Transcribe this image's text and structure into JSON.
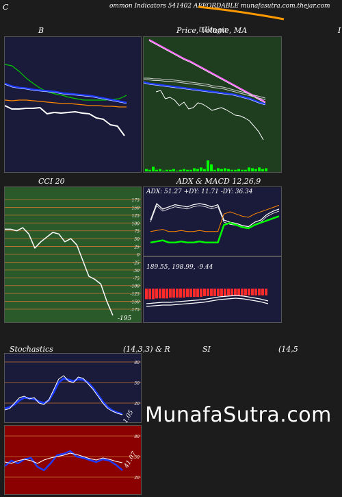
{
  "header": {
    "title": "ommon  Indicators 541402  AFFORDABLE munafasutra.com.thejar.com",
    "left_letter": "C"
  },
  "panel_titles": {
    "b": "B",
    "price": "Price,  Volume,  MA",
    "price_overlap": "Ullingir",
    "cci": "CCI 20",
    "adx_macd": "ADX   & MACD 12,26,9",
    "stoch_left": "Stochastics",
    "stoch_params": "(14,3,3) & R",
    "rsi": "SI",
    "rsi_params": "(14,5",
    "right_edge": "I"
  },
  "adx_text": "ADX: 51.27  +DY: 11.71  -DY: 36.34",
  "macd_text": "189.55,  198.99,  -9.44",
  "cci_last": "-195",
  "stoch_last": "1.05",
  "rsi_last": "41.07",
  "watermark": "MunafaSutra.com",
  "colors": {
    "panel_navy": "#1a1a3a",
    "panel_green": "#1f3d1f",
    "cci_green": "#2a5a2a",
    "rsi_red": "#8b0000",
    "price_line": "#ffffff",
    "ma_blue": "#0000ff",
    "ma_green": "#00cc00",
    "ma_orange": "#ff8800",
    "volume_green": "#00ff00"
  },
  "chart_data": [
    {
      "type": "line",
      "name": "Bollinger Bands",
      "series": [
        {
          "values": [
            100,
            95,
            95,
            96,
            96,
            97,
            88,
            90,
            89,
            90,
            91,
            89,
            88,
            82,
            80,
            72,
            70,
            56
          ]
        },
        {
          "values": [
            132,
            128,
            126,
            125,
            123,
            122,
            121,
            120,
            118,
            117,
            116,
            115,
            114,
            112,
            110,
            108,
            106,
            104
          ]
        },
        {
          "values": [
            160,
            158,
            150,
            140,
            132,
            125,
            120,
            117,
            115,
            112,
            110,
            108,
            108,
            108,
            108,
            109,
            110,
            115
          ]
        },
        {
          "values": [
            108,
            107,
            108,
            108,
            107,
            106,
            105,
            104,
            103,
            103,
            102,
            101,
            100,
            100,
            99,
            99,
            98,
            98
          ]
        }
      ]
    },
    {
      "type": "line",
      "name": "Price Volume MA",
      "series": [
        {
          "values": [
            120,
            122,
            110,
            112,
            108,
            100,
            105,
            95,
            97,
            104,
            102,
            98,
            93,
            95,
            97,
            94,
            90,
            86,
            85,
            82,
            78,
            70,
            62,
            50
          ]
        },
        {
          "values": [
            134,
            132,
            131,
            130,
            129,
            128,
            127,
            126,
            125,
            124,
            123,
            122,
            121,
            120,
            119,
            118,
            117,
            116,
            114,
            112,
            110,
            107,
            104,
            102
          ]
        },
        {
          "values": [
            140,
            140,
            139,
            139,
            138,
            138,
            137,
            136,
            135,
            134,
            133,
            132,
            131,
            129,
            128,
            127,
            125,
            123,
            121,
            119,
            117,
            115,
            113,
            111
          ]
        },
        {
          "values": [
            196,
            192,
            188,
            184,
            180,
            176,
            172,
            168,
            165,
            161,
            157,
            153,
            149,
            145,
            141,
            137,
            133,
            129,
            125,
            121,
            117,
            113,
            109,
            105
          ]
        }
      ],
      "volume": [
        3,
        2,
        6,
        2,
        3,
        1,
        2,
        2,
        3,
        1,
        2,
        3,
        2,
        2,
        4,
        3,
        5,
        3,
        14,
        9,
        2,
        4,
        3,
        4,
        3,
        2,
        2,
        3,
        2,
        2,
        5,
        4,
        3,
        5,
        3,
        4
      ]
    },
    {
      "type": "line",
      "name": "CCI 20",
      "yticks": [
        175,
        150,
        125,
        100,
        75,
        50,
        25,
        0,
        -25,
        -50,
        -75,
        -100,
        -125,
        -150,
        -175
      ],
      "series": [
        {
          "values": [
            80,
            80,
            75,
            85,
            65,
            20,
            40,
            55,
            70,
            65,
            40,
            50,
            30,
            -20,
            -70,
            -80,
            -95,
            -150,
            -195
          ]
        }
      ]
    },
    {
      "type": "line",
      "name": "ADX",
      "series": [
        {
          "values": [
            30,
            45,
            40,
            42,
            44,
            43,
            42,
            44,
            45,
            44,
            42,
            44,
            30,
            28,
            27,
            25,
            24,
            28,
            30,
            35,
            38,
            40
          ]
        },
        {
          "values": [
            12,
            13,
            14,
            12,
            12,
            13,
            12,
            12,
            13,
            12,
            12,
            12,
            28,
            30,
            28,
            26,
            25,
            28,
            30,
            32,
            34,
            36
          ]
        }
      ]
    },
    {
      "type": "bar",
      "name": "MACD histogram",
      "values": [
        -14,
        -14,
        -14,
        -13,
        -13,
        -13,
        -13,
        -12,
        -12,
        -12,
        -12,
        -12,
        -11,
        -11,
        -11,
        -11,
        -11,
        -10,
        -10,
        -10,
        -10,
        -10,
        -10,
        -10,
        -9,
        -9,
        -9,
        -9,
        -9,
        -9,
        -9,
        -9,
        -9,
        -9,
        -9,
        -9
      ]
    },
    {
      "type": "line",
      "name": "Stochastics",
      "yticks": [
        80,
        50,
        20
      ],
      "series": [
        {
          "values": [
            10,
            12,
            20,
            28,
            30,
            26,
            28,
            20,
            18,
            25,
            40,
            55,
            60,
            52,
            50,
            58,
            56,
            48,
            40,
            30,
            20,
            12,
            8,
            5,
            3
          ]
        },
        {
          "values": [
            12,
            14,
            18,
            24,
            28,
            27,
            26,
            22,
            20,
            24,
            36,
            50,
            56,
            54,
            52,
            55,
            54,
            50,
            42,
            32,
            22,
            14,
            9,
            6,
            4
          ]
        }
      ]
    },
    {
      "type": "line",
      "name": "RSI",
      "yticks": [
        80,
        50,
        20
      ],
      "series": [
        {
          "values": [
            42,
            40,
            44,
            46,
            44,
            40,
            45,
            48,
            50,
            52,
            55,
            53,
            50,
            47,
            45,
            48,
            46,
            43,
            41
          ]
        },
        {
          "values": [
            36,
            44,
            40,
            46,
            48,
            35,
            30,
            40,
            52,
            54,
            58,
            50,
            48,
            45,
            42,
            46,
            44,
            38,
            30
          ]
        }
      ]
    }
  ]
}
